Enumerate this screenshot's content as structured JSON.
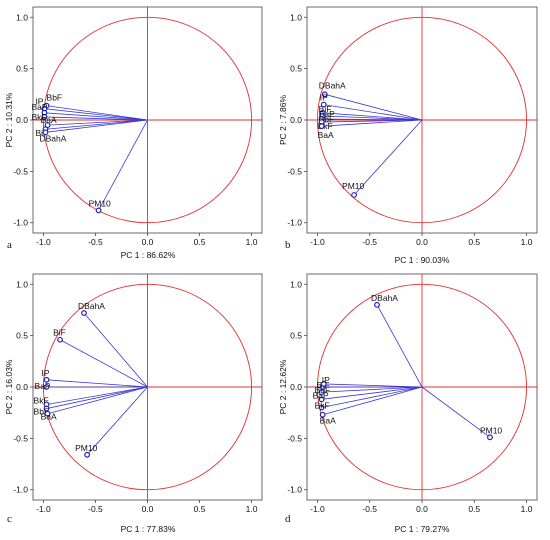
{
  "colors": {
    "circle": "#e03030",
    "axis": "#e03030",
    "vector": "#3a3ad6",
    "marker": "#2020c0"
  },
  "chart_data": [
    {
      "type": "scatter",
      "panel": "a",
      "xlabel": "PC 1 : 86.62%",
      "ylabel": "PC 2 : 10.31%",
      "xlim": [
        -1.1,
        1.1
      ],
      "ylim": [
        -1.1,
        1.1
      ],
      "xticks": [
        "-1.0",
        "-0.5",
        "0.0",
        "0.5",
        "1.0"
      ],
      "yticks": [
        "1.0",
        "0.5",
        "0.0",
        "-0.5",
        "-1.0"
      ],
      "points": [
        {
          "label": "BbF",
          "x": -0.97,
          "y": 0.14
        },
        {
          "label": "IP",
          "x": -0.99,
          "y": 0.11
        },
        {
          "label": "BaP",
          "x": -0.99,
          "y": 0.07
        },
        {
          "label": "BkF",
          "x": -0.99,
          "y": 0.03
        },
        {
          "label": "BaA",
          "x": -0.96,
          "y": -0.05
        },
        {
          "label": "BiF",
          "x": -0.98,
          "y": -0.09
        },
        {
          "label": "DBahA",
          "x": -0.98,
          "y": -0.12
        },
        {
          "label": "PM10",
          "x": -0.47,
          "y": -0.88
        }
      ]
    },
    {
      "type": "scatter",
      "panel": "b",
      "xlabel": "PC 1 : 90.03%",
      "ylabel": "PC 2 : 7.86%",
      "xlim": [
        -1.1,
        1.1
      ],
      "ylim": [
        -1.1,
        1.1
      ],
      "xticks": [
        "-1.0",
        "-0.5",
        "0.0",
        "0.5",
        "1.0"
      ],
      "yticks": [
        "1.0",
        "0.5",
        "0.0",
        "-0.5",
        "-1.0"
      ],
      "points": [
        {
          "label": "DBahA",
          "x": -0.93,
          "y": 0.25
        },
        {
          "label": "IP",
          "x": -0.94,
          "y": 0.15
        },
        {
          "label": "BiF",
          "x": -0.95,
          "y": 0.07
        },
        {
          "label": "BaP",
          "x": -0.95,
          "y": 0.04
        },
        {
          "label": "BbF",
          "x": -0.96,
          "y": 0.01
        },
        {
          "label": "BkF",
          "x": -0.96,
          "y": -0.02
        },
        {
          "label": "BaA",
          "x": -0.96,
          "y": -0.06
        },
        {
          "label": "PM10",
          "x": -0.65,
          "y": -0.73
        }
      ]
    },
    {
      "type": "scatter",
      "panel": "c",
      "xlabel": "PC 1 : 77.83%",
      "ylabel": "PC 2 : 16.03%",
      "xlim": [
        -1.1,
        1.1
      ],
      "ylim": [
        -1.1,
        1.1
      ],
      "xticks": [
        "-1.0",
        "-0.5",
        "0.0",
        "0.5",
        "1.0"
      ],
      "yticks": [
        "1.0",
        "0.5",
        "0.0",
        "-0.5",
        "-1.0"
      ],
      "points": [
        {
          "label": "DBahA",
          "x": -0.61,
          "y": 0.72
        },
        {
          "label": "BiF",
          "x": -0.84,
          "y": 0.46
        },
        {
          "label": "IP",
          "x": -0.97,
          "y": 0.07
        },
        {
          "label": "BaP",
          "x": -0.97,
          "y": 0.0
        },
        {
          "label": "BkF",
          "x": -0.97,
          "y": -0.17
        },
        {
          "label": "BbF",
          "x": -0.97,
          "y": -0.21
        },
        {
          "label": "BaA",
          "x": -0.96,
          "y": -0.26
        },
        {
          "label": "PM10",
          "x": -0.58,
          "y": -0.66
        }
      ]
    },
    {
      "type": "scatter",
      "panel": "d",
      "xlabel": "PC 1 : 79.27%",
      "ylabel": "PC 2 : 12.62%",
      "xlim": [
        -1.1,
        1.1
      ],
      "ylim": [
        -1.1,
        1.1
      ],
      "xticks": [
        "-1.0",
        "-0.5",
        "0.0",
        "0.5",
        "1.0"
      ],
      "yticks": [
        "1.0",
        "0.5",
        "0.0",
        "-0.5",
        "-1.0"
      ],
      "points": [
        {
          "label": "DBahA",
          "x": -0.43,
          "y": 0.8
        },
        {
          "label": "BiF",
          "x": -0.95,
          "y": 0.0
        },
        {
          "label": "IP",
          "x": -0.94,
          "y": 0.03
        },
        {
          "label": "BbF",
          "x": -0.96,
          "y": -0.05
        },
        {
          "label": "BaP",
          "x": -0.96,
          "y": -0.12
        },
        {
          "label": "BkF",
          "x": -0.96,
          "y": -0.2
        },
        {
          "label": "BaA",
          "x": -0.95,
          "y": -0.27
        },
        {
          "label": "PM10",
          "x": 0.65,
          "y": -0.49
        }
      ]
    }
  ]
}
